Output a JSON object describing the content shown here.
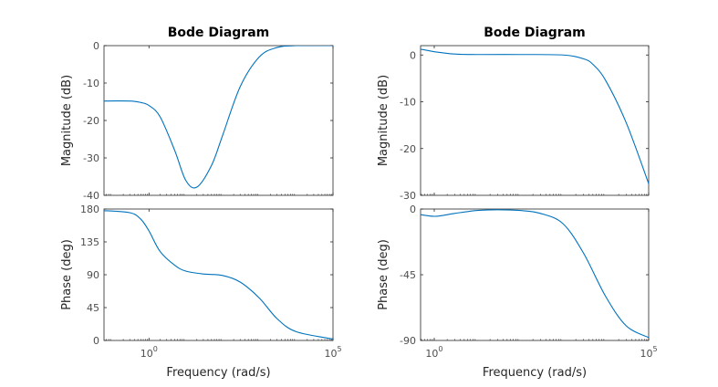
{
  "chart_data": [
    {
      "type": "line",
      "title": "Bode Diagram",
      "xlabel": "Frequency  (rad/s)",
      "x_scale": "log",
      "x_ticks": [
        {
          "base": "10",
          "exp": "0",
          "value": 1
        },
        {
          "base": "10",
          "exp": "5",
          "value": 100000
        }
      ],
      "color": "#0072bd",
      "panels": [
        {
          "ylabel": "Magnitude (dB)",
          "ylim": [
            -40,
            0
          ],
          "yticks": [
            "0",
            "-10",
            "-20",
            "-30",
            "-40"
          ],
          "series": [
            {
              "x": [
                0.05,
                0.3,
                0.6,
                1,
                2,
                5,
                10,
                20,
                50,
                100,
                300,
                1000,
                3000,
                10000,
                100000
              ],
              "y": [
                -14.8,
                -14.8,
                -15.2,
                -16,
                -19,
                -28,
                -36,
                -37.8,
                -32,
                -24,
                -11,
                -3,
                -0.5,
                0,
                0
              ]
            }
          ]
        },
        {
          "ylabel": "Phase (deg)",
          "ylim": [
            0,
            180
          ],
          "yticks": [
            "180",
            "135",
            "90",
            "45",
            "0"
          ],
          "series": [
            {
              "x": [
                0.05,
                0.3,
                0.6,
                1,
                2,
                5,
                10,
                30,
                100,
                300,
                1000,
                3000,
                10000,
                100000
              ],
              "y": [
                178,
                175,
                166,
                150,
                122,
                103,
                95,
                91,
                89,
                80,
                58,
                30,
                12,
                2
              ]
            }
          ]
        }
      ]
    },
    {
      "type": "line",
      "title": "Bode Diagram",
      "xlabel": "Frequency  (rad/s)",
      "x_scale": "log",
      "x_ticks": [
        {
          "base": "10",
          "exp": "0",
          "value": 1
        },
        {
          "base": "10",
          "exp": "5",
          "value": 100000
        }
      ],
      "color": "#0072bd",
      "panels": [
        {
          "ylabel": "Magnitude (dB)",
          "ylim": [
            -30,
            2
          ],
          "yticks": [
            "0",
            "-10",
            "-20",
            "-30"
          ],
          "series": [
            {
              "x": [
                0.05,
                0.2,
                0.5,
                1,
                3,
                10,
                100,
                1000,
                3000,
                5000,
                10000,
                30000,
                100000
              ],
              "y": [
                1.6,
                1.5,
                1.2,
                0.7,
                0.2,
                0.1,
                0.1,
                0,
                -0.8,
                -2,
                -5.5,
                -14.5,
                -27.5
              ]
            }
          ]
        },
        {
          "ylabel": "Phase (deg)",
          "ylim": [
            -90,
            0
          ],
          "yticks": [
            "0",
            "-45",
            "-90"
          ],
          "series": [
            {
              "x": [
                0.05,
                0.3,
                1,
                3,
                10,
                30,
                100,
                300,
                1000,
                3000,
                10000,
                30000,
                100000
              ],
              "y": [
                -1,
                -3,
                -5,
                -3,
                -1,
                -0.5,
                -1,
                -3,
                -10,
                -30,
                -60,
                -80,
                -88
              ]
            }
          ]
        }
      ]
    }
  ]
}
